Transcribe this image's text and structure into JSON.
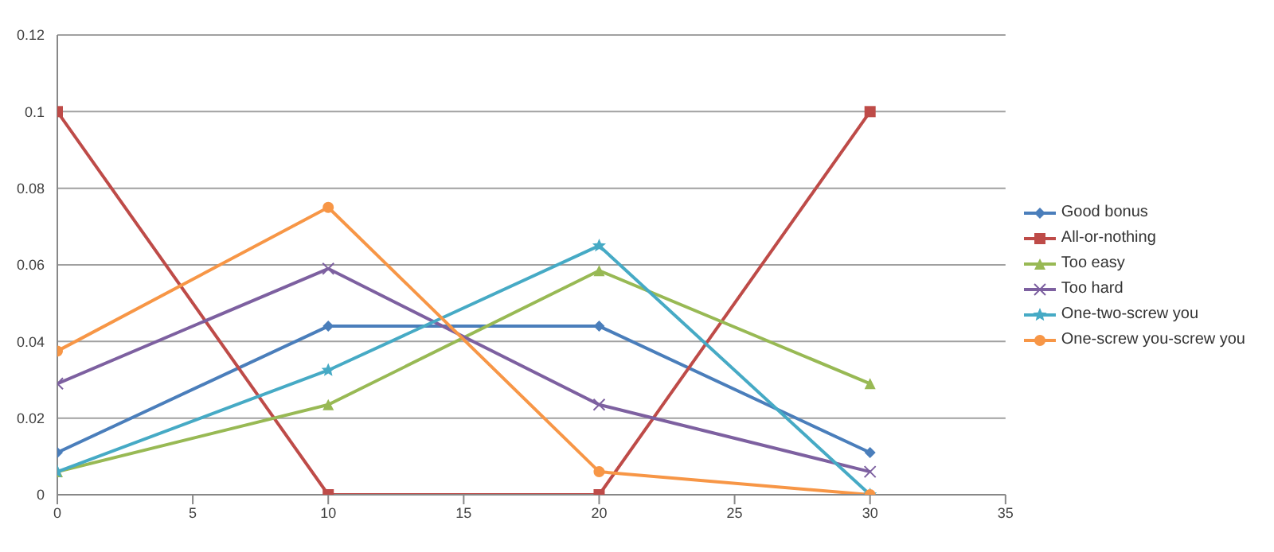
{
  "chart_data": {
    "type": "line",
    "x": [
      0,
      10,
      20,
      30
    ],
    "xlim": [
      0,
      35
    ],
    "xticks": [
      0,
      5,
      10,
      15,
      20,
      25,
      30,
      35
    ],
    "ylim": [
      0,
      0.12
    ],
    "yticks": [
      0,
      0.02,
      0.04,
      0.06,
      0.08,
      0.1,
      0.12
    ],
    "grid": "y",
    "legend": "right",
    "series": [
      {
        "name": "Good bonus",
        "color": "#4a7ebb",
        "marker": "diamond",
        "values": [
          0.011,
          0.044,
          0.044,
          0.011
        ]
      },
      {
        "name": "All-or-nothing",
        "color": "#be4b48",
        "marker": "square",
        "values": [
          0.1,
          0,
          0,
          0.1
        ]
      },
      {
        "name": "Too easy",
        "color": "#98b954",
        "marker": "triangle",
        "values": [
          0.006,
          0.0235,
          0.0585,
          0.029
        ]
      },
      {
        "name": "Too hard",
        "color": "#7d60a0",
        "marker": "cross",
        "values": [
          0.029,
          0.059,
          0.0235,
          0.006
        ]
      },
      {
        "name": "One-two-screw you",
        "color": "#46aac5",
        "marker": "star",
        "values": [
          0.006,
          0.0325,
          0.065,
          0
        ]
      },
      {
        "name": "One-screw you-screw you",
        "color": "#f79646",
        "marker": "circle",
        "values": [
          0.0375,
          0.075,
          0.006,
          0
        ]
      }
    ]
  }
}
